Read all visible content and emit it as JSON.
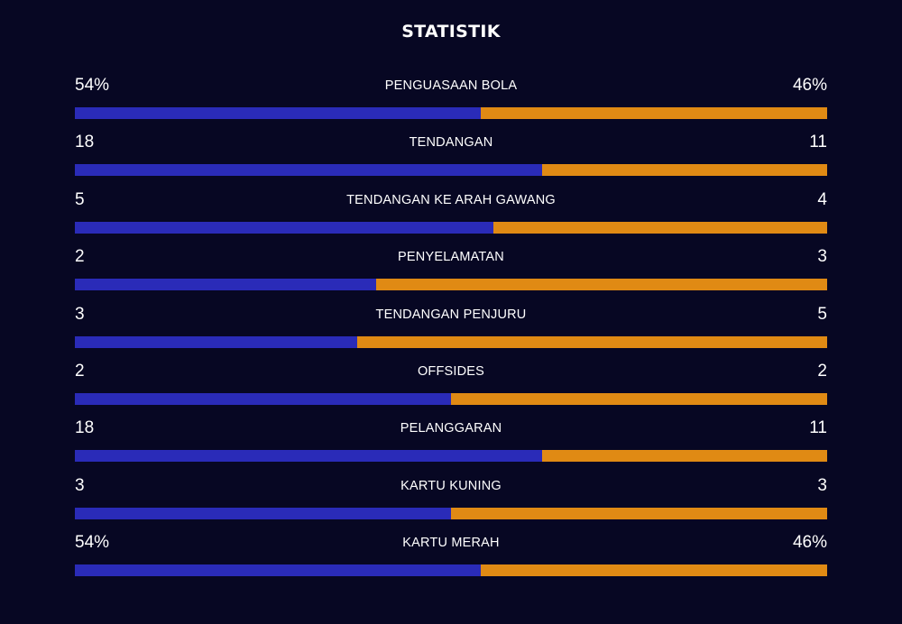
{
  "title": "STATISTIK",
  "colors": {
    "background": "#070723",
    "home": "#2a2bb8",
    "away": "#e08a14",
    "text": "#ffffff"
  },
  "stats": [
    {
      "label": "PENGUASAAN BOLA",
      "home": "54%",
      "away": "46%",
      "home_share": 0.54
    },
    {
      "label": "TENDANGAN",
      "home": "18",
      "away": "11",
      "home_share": 0.621
    },
    {
      "label": "TENDANGAN KE ARAH GAWANG",
      "home": "5",
      "away": "4",
      "home_share": 0.556
    },
    {
      "label": "PENYELAMATAN",
      "home": "2",
      "away": "3",
      "home_share": 0.4
    },
    {
      "label": "TENDANGAN PENJURU",
      "home": "3",
      "away": "5",
      "home_share": 0.375
    },
    {
      "label": "OFFSIDES",
      "home": "2",
      "away": "2",
      "home_share": 0.5
    },
    {
      "label": "PELANGGARAN",
      "home": "18",
      "away": "11",
      "home_share": 0.621
    },
    {
      "label": "KARTU KUNING",
      "home": "3",
      "away": "3",
      "home_share": 0.5
    },
    {
      "label": "KARTU MERAH",
      "home": "54%",
      "away": "46%",
      "home_share": 0.54
    }
  ]
}
